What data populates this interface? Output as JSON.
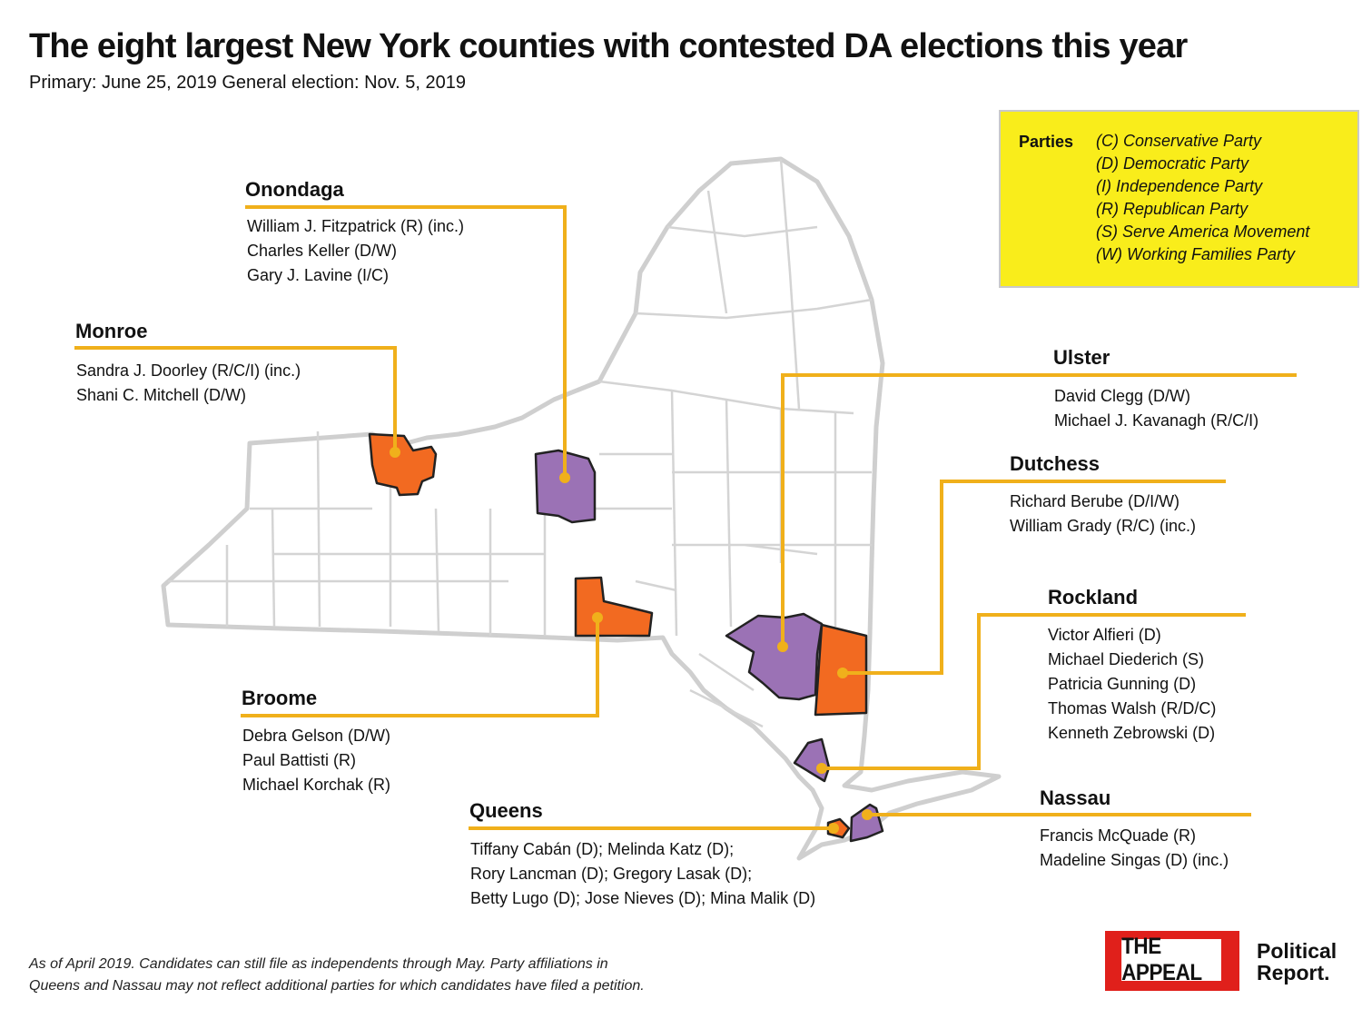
{
  "title": "The eight largest New York counties with contested DA elections this year",
  "subtitle": "Primary: June 25, 2019 General election: Nov. 5, 2019",
  "legend": {
    "heading": "Parties",
    "items": [
      "(C) Conservative Party",
      "(D) Democratic Party",
      "(I) Independence Party",
      "(R) Republican Party",
      "(S) Serve America Movement",
      "(W) Working Families Party"
    ]
  },
  "counties": {
    "onondaga": {
      "name": "Onondaga",
      "candidates": [
        "William J. Fitzpatrick (R) (inc.)",
        "Charles Keller (D/W)",
        "Gary J. Lavine (I/C)"
      ]
    },
    "monroe": {
      "name": "Monroe",
      "candidates": [
        "Sandra J. Doorley (R/C/I) (inc.)",
        "Shani C. Mitchell (D/W)"
      ]
    },
    "ulster": {
      "name": "Ulster",
      "candidates": [
        "David Clegg (D/W)",
        "Michael J. Kavanagh (R/C/I)"
      ]
    },
    "dutchess": {
      "name": "Dutchess",
      "candidates": [
        "Richard Berube (D/I/W)",
        "William Grady (R/C) (inc.)"
      ]
    },
    "rockland": {
      "name": "Rockland",
      "candidates": [
        "Victor Alfieri (D)",
        "Michael Diederich (S)",
        "Patricia Gunning (D)",
        "Thomas Walsh (R/D/C)",
        "Kenneth Zebrowski (D)"
      ]
    },
    "broome": {
      "name": "Broome",
      "candidates": [
        "Debra Gelson (D/W)",
        "Paul Battisti (R)",
        "Michael Korchak (R)"
      ]
    },
    "queens": {
      "name": "Queens",
      "candidates": [
        "Tiffany Cabán (D); Melinda Katz (D);",
        "Rory Lancman (D); Gregory Lasak (D);",
        "Betty Lugo (D); Jose Nieves (D); Mina Malik (D)"
      ]
    },
    "nassau": {
      "name": "Nassau",
      "candidates": [
        "Francis McQuade (R)",
        "Madeline Singas (D) (inc.)"
      ]
    }
  },
  "footnote": {
    "line1": "As of April 2019. Candidates can still file as independents through May. Party affiliations in",
    "line2": "Queens and Nassau may not reflect additional parties for which candidates have filed a petition."
  },
  "logo": {
    "main": "THE APPEAL",
    "line1": "Political",
    "line2": "Report."
  },
  "colors": {
    "orange": "#f26a21",
    "purple": "#9b72b5",
    "leader": "#f0b01b",
    "legend_bg": "#f9ed1b",
    "map_border": "#cccccc"
  }
}
